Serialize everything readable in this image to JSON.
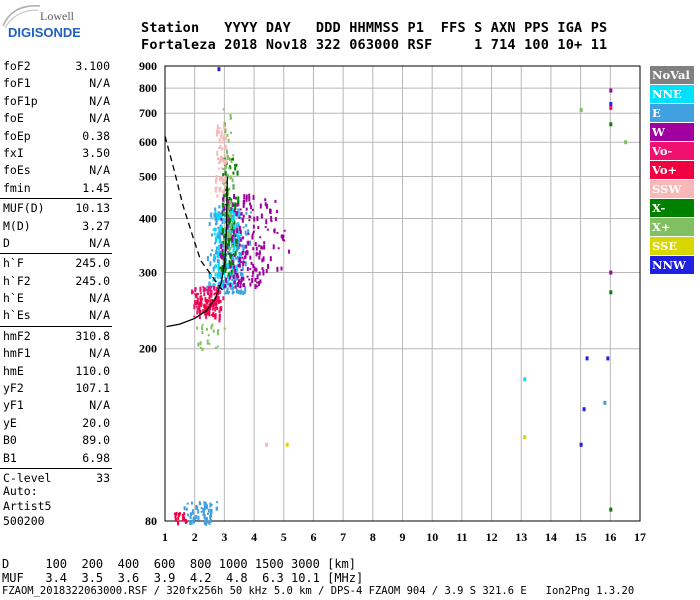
{
  "logo": {
    "line1": "Lowell",
    "line2": "DIGISONDE",
    "accent": "#2060c0"
  },
  "header": {
    "line1": "Station   YYYY DAY   DDD HHMMSS P1  FFS S AXN PPS IGA PS",
    "line2": "Fortaleza 2018 Nov18 322 063000 RSF     1 714 100 10+ 11"
  },
  "params": [
    {
      "name": "foF2",
      "value": "3.100"
    },
    {
      "name": "foF1",
      "value": "N/A"
    },
    {
      "name": "foF1p",
      "value": "N/A"
    },
    {
      "name": "foE",
      "value": "N/A"
    },
    {
      "name": "foEp",
      "value": "0.38"
    },
    {
      "name": "fxI",
      "value": "3.50"
    },
    {
      "name": "foEs",
      "value": "N/A"
    },
    {
      "name": "fmin",
      "value": "1.45"
    },
    {
      "name": "MUF(D)",
      "value": "10.13"
    },
    {
      "name": "M(D)",
      "value": "3.27"
    },
    {
      "name": "D",
      "value": "N/A"
    },
    {
      "name": "h`F",
      "value": "245.0"
    },
    {
      "name": "h`F2",
      "value": "245.0"
    },
    {
      "name": "h`E",
      "value": "N/A"
    },
    {
      "name": "h`Es",
      "value": "N/A"
    },
    {
      "name": "hmF2",
      "value": "310.8"
    },
    {
      "name": "hmF1",
      "value": "N/A"
    },
    {
      "name": "hmE",
      "value": "110.0"
    },
    {
      "name": "yF2",
      "value": "107.1"
    },
    {
      "name": "yF1",
      "value": "N/A"
    },
    {
      "name": "yE",
      "value": "20.0"
    },
    {
      "name": "B0",
      "value": "89.0"
    },
    {
      "name": "B1",
      "value": "6.98"
    },
    {
      "name": "C-level",
      "value": "33"
    }
  ],
  "auto": {
    "line1": "Auto:",
    "line2": "Artist5",
    "line3": "500200"
  },
  "legend": [
    {
      "label": "NoVal",
      "color": "#808080",
      "text": "#ffffff"
    },
    {
      "label": "NNE",
      "color": "#00e0ff",
      "text": "#ffffff"
    },
    {
      "label": "E",
      "color": "#40a0e0",
      "text": "#ffffff"
    },
    {
      "label": "W",
      "color": "#a000a0",
      "text": "#ffffff"
    },
    {
      "label": "Vo-",
      "color": "#f01070",
      "text": "#ffffff"
    },
    {
      "label": "Vo+",
      "color": "#f00040",
      "text": "#ffffff"
    },
    {
      "label": "SSW",
      "color": "#f8b8b8",
      "text": "#ffffff"
    },
    {
      "label": "X-",
      "color": "#008000",
      "text": "#ffffff"
    },
    {
      "label": "X+",
      "color": "#80c060",
      "text": "#ffffff"
    },
    {
      "label": "SSE",
      "color": "#d8d800",
      "text": "#ffffff"
    },
    {
      "label": "NNW",
      "color": "#2020e0",
      "text": "#ffffff"
    }
  ],
  "table": {
    "row1": "D     100  200  400  600  800 1000 1500 3000 [km]",
    "row2": "MUF   3.4  3.5  3.6  3.9  4.2  4.8  6.3 10.1 [MHz]"
  },
  "footer": "FZAOM_2018322063000.RSF / 320fx256h 50 kHz 5.0 km / DPS-4 FZAOM 904 / 3.9 S 321.6 E   Ion2Png 1.3.20",
  "chart_data": {
    "type": "scatter",
    "x_ticks": [
      "1",
      "2",
      "3",
      "4",
      "5",
      "6",
      "7",
      "8",
      "9",
      "10",
      "11",
      "12",
      "13",
      "14",
      "15",
      "16",
      "17"
    ],
    "y_ticks": [
      "80",
      "200",
      "300",
      "400",
      "500",
      "600",
      "700",
      "800",
      "900"
    ],
    "xlim": [
      1,
      17
    ],
    "ylim": [
      80,
      900
    ],
    "y_scale": "log",
    "grid": true,
    "legend_position": "right",
    "ionogram_clusters": [
      {
        "color": "#40a0e0",
        "x": [
          2.3,
          3.9
        ],
        "y": [
          270,
          430
        ],
        "n": 260
      },
      {
        "color": "#00e0ff",
        "x": [
          2.4,
          3.6
        ],
        "y": [
          280,
          420
        ],
        "n": 140
      },
      {
        "color": "#a000a0",
        "x": [
          2.6,
          4.4
        ],
        "y": [
          280,
          460
        ],
        "n": 160
      },
      {
        "color": "#f01070",
        "x": [
          1.8,
          3.0
        ],
        "y": [
          235,
          280
        ],
        "n": 90
      },
      {
        "color": "#f00040",
        "x": [
          1.9,
          2.9
        ],
        "y": [
          240,
          270
        ],
        "n": 50
      },
      {
        "color": "#008000",
        "x": [
          2.8,
          3.5
        ],
        "y": [
          300,
          560
        ],
        "n": 90
      },
      {
        "color": "#80c060",
        "x": [
          2.9,
          3.3
        ],
        "y": [
          320,
          720
        ],
        "n": 60
      },
      {
        "color": "#f8b8b8",
        "x": [
          2.6,
          3.1
        ],
        "y": [
          450,
          660
        ],
        "n": 50
      },
      {
        "color": "#a000a0",
        "x": [
          3.8,
          5.2
        ],
        "y": [
          300,
          450
        ],
        "n": 45
      },
      {
        "color": "#40a0e0",
        "x": [
          1.5,
          2.9
        ],
        "y": [
          80,
          89
        ],
        "n": 60
      },
      {
        "color": "#f00040",
        "x": [
          1.2,
          1.8
        ],
        "y": [
          80,
          84
        ],
        "n": 20
      },
      {
        "color": "#80c060",
        "x": [
          1.8,
          3.0
        ],
        "y": [
          200,
          230
        ],
        "n": 20
      }
    ],
    "scattered_points": [
      {
        "x": 16.0,
        "y": 790,
        "color": "#a000a0"
      },
      {
        "x": 16.0,
        "y": 735,
        "color": "#2020e0"
      },
      {
        "x": 16.0,
        "y": 660,
        "color": "#008000"
      },
      {
        "x": 16.0,
        "y": 720,
        "color": "#f01070"
      },
      {
        "x": 16.5,
        "y": 600,
        "color": "#80c060"
      },
      {
        "x": 15.0,
        "y": 712,
        "color": "#80c060"
      },
      {
        "x": 16.0,
        "y": 300,
        "color": "#a000a0"
      },
      {
        "x": 16.0,
        "y": 270,
        "color": "#008000"
      },
      {
        "x": 15.9,
        "y": 190,
        "color": "#2020e0"
      },
      {
        "x": 15.2,
        "y": 190,
        "color": "#2020e0"
      },
      {
        "x": 15.8,
        "y": 150,
        "color": "#40a0e0"
      },
      {
        "x": 15.1,
        "y": 145,
        "color": "#2020e0"
      },
      {
        "x": 15.0,
        "y": 120,
        "color": "#2020e0"
      },
      {
        "x": 16.0,
        "y": 85,
        "color": "#008000"
      },
      {
        "x": 13.1,
        "y": 170,
        "color": "#00e0ff"
      },
      {
        "x": 13.1,
        "y": 125,
        "color": "#d8d800"
      },
      {
        "x": 5.1,
        "y": 120,
        "color": "#d8d800"
      },
      {
        "x": 4.4,
        "y": 120,
        "color": "#f8b8b8"
      },
      {
        "x": 2.8,
        "y": 885,
        "color": "#2020e0"
      }
    ],
    "solid_profile": [
      [
        1.05,
        225
      ],
      [
        1.5,
        228
      ],
      [
        2.0,
        235
      ],
      [
        2.4,
        245
      ],
      [
        2.7,
        262
      ],
      [
        2.9,
        285
      ],
      [
        3.02,
        320
      ],
      [
        3.07,
        380
      ],
      [
        3.1,
        500
      ]
    ],
    "dashed_profile": [
      [
        1.0,
        620
      ],
      [
        1.3,
        520
      ],
      [
        1.6,
        430
      ],
      [
        1.9,
        370
      ],
      [
        2.2,
        320
      ],
      [
        2.5,
        300
      ],
      [
        2.8,
        280
      ],
      [
        3.0,
        270
      ]
    ]
  }
}
